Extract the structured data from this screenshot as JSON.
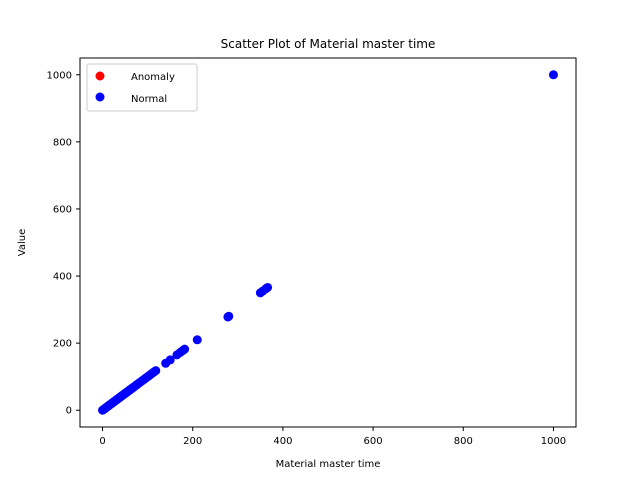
{
  "chart_data": {
    "type": "scatter",
    "title": "Scatter Plot of Material master time",
    "xlabel": "Material master time",
    "ylabel": "Value",
    "xlim": [
      -50,
      1050
    ],
    "ylim": [
      -50,
      1050
    ],
    "xticks": [
      0,
      200,
      400,
      600,
      800,
      1000
    ],
    "yticks": [
      0,
      200,
      400,
      600,
      800,
      1000
    ],
    "grid": false,
    "legend_position": "top-left",
    "series": [
      {
        "name": "Anomaly",
        "color": "#ff0000",
        "x": [],
        "y": []
      },
      {
        "name": "Normal",
        "color": "#0000ff",
        "x": [
          0,
          2,
          4,
          6,
          8,
          10,
          12,
          14,
          16,
          18,
          20,
          22,
          24,
          26,
          28,
          30,
          32,
          34,
          36,
          38,
          40,
          42,
          44,
          46,
          48,
          50,
          52,
          54,
          56,
          58,
          60,
          62,
          64,
          66,
          68,
          70,
          74,
          78,
          82,
          86,
          90,
          94,
          98,
          102,
          106,
          110,
          114,
          118,
          140,
          150,
          165,
          172,
          178,
          182,
          210,
          278,
          280,
          350,
          355,
          362,
          366,
          1000
        ],
        "y": [
          0,
          2,
          4,
          6,
          8,
          10,
          12,
          14,
          16,
          18,
          20,
          22,
          24,
          26,
          28,
          30,
          32,
          34,
          36,
          38,
          40,
          42,
          44,
          46,
          48,
          50,
          52,
          54,
          56,
          58,
          60,
          62,
          64,
          66,
          68,
          70,
          74,
          78,
          82,
          86,
          90,
          94,
          98,
          102,
          106,
          110,
          114,
          118,
          140,
          150,
          165,
          172,
          178,
          182,
          210,
          278,
          280,
          350,
          355,
          362,
          366,
          1000
        ]
      }
    ]
  }
}
